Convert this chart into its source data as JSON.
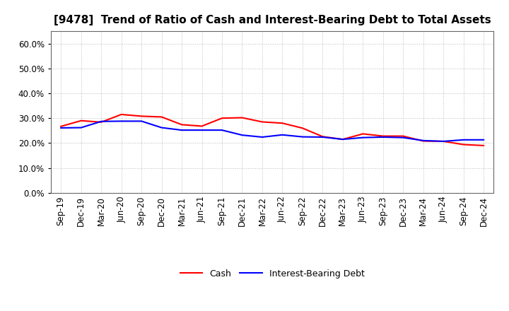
{
  "title": "[9478]  Trend of Ratio of Cash and Interest-Bearing Debt to Total Assets",
  "x_labels": [
    "Sep-19",
    "Dec-19",
    "Mar-20",
    "Jun-20",
    "Sep-20",
    "Dec-20",
    "Mar-21",
    "Jun-21",
    "Sep-21",
    "Dec-21",
    "Mar-22",
    "Jun-22",
    "Sep-22",
    "Dec-22",
    "Mar-23",
    "Jun-23",
    "Sep-23",
    "Dec-23",
    "Mar-24",
    "Jun-24",
    "Sep-24",
    "Dec-24"
  ],
  "cash": [
    0.267,
    0.29,
    0.284,
    0.315,
    0.308,
    0.305,
    0.274,
    0.268,
    0.3,
    0.302,
    0.285,
    0.28,
    0.26,
    0.226,
    0.215,
    0.237,
    0.228,
    0.228,
    0.208,
    0.207,
    0.194,
    0.19
  ],
  "interest_bearing_debt": [
    0.261,
    0.262,
    0.287,
    0.288,
    0.288,
    0.262,
    0.252,
    0.252,
    0.252,
    0.232,
    0.224,
    0.233,
    0.225,
    0.224,
    0.215,
    0.222,
    0.224,
    0.222,
    0.21,
    0.207,
    0.213,
    0.213
  ],
  "cash_color": "#ff0000",
  "debt_color": "#0000ff",
  "ylim": [
    0.0,
    0.65
  ],
  "yticks": [
    0.0,
    0.1,
    0.2,
    0.3,
    0.4,
    0.5,
    0.6
  ],
  "background_color": "#ffffff",
  "grid_color": "#bbbbbb",
  "legend_cash": "Cash",
  "legend_debt": "Interest-Bearing Debt",
  "title_fontsize": 11,
  "tick_fontsize": 8.5,
  "legend_fontsize": 9
}
